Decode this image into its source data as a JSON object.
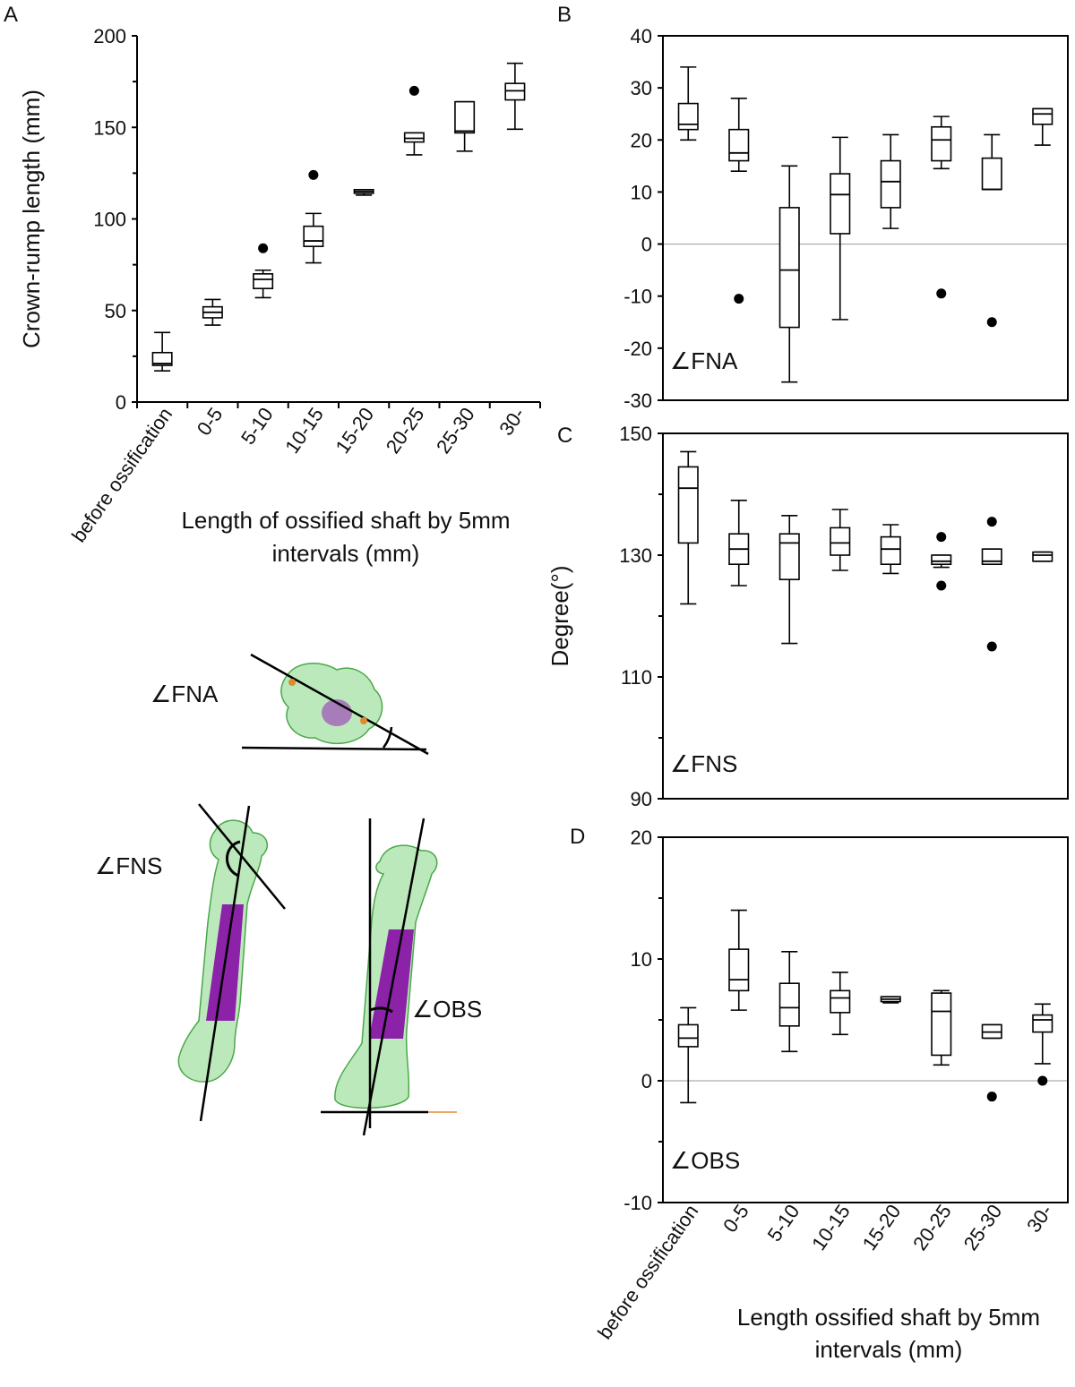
{
  "panel_letters": {
    "a": "A",
    "b": "B",
    "c": "C",
    "d": "D"
  },
  "illustration": {
    "fna_label": "∠FNA",
    "fns_label": "∠FNS",
    "obs_label": "∠OBS",
    "colors": {
      "bone": "#7fd17f",
      "ossified": "#8b22a8",
      "orange": "#e08a30",
      "line": "#000000"
    }
  },
  "chart_data": [
    {
      "panel": "A",
      "type": "box",
      "title": "",
      "xlabel": "Length of ossified shaft by 5mm intervals (mm)",
      "ylabel": "Crown-rump length (mm)",
      "ylim": [
        0,
        200
      ],
      "yticks": [
        0,
        50,
        100,
        150,
        200
      ],
      "categories": [
        "before ossification",
        "0-5",
        "5-10",
        "10-15",
        "15-20",
        "20-25",
        "25-30",
        "30-"
      ],
      "boxes": [
        {
          "min": 17,
          "q1": 20,
          "median": 21,
          "q3": 27,
          "max": 38,
          "outliers": []
        },
        {
          "min": 42,
          "q1": 46,
          "median": 49,
          "q3": 52,
          "max": 56,
          "outliers": []
        },
        {
          "min": 57,
          "q1": 62,
          "median": 67,
          "q3": 70,
          "max": 72,
          "outliers": [
            84
          ]
        },
        {
          "min": 76,
          "q1": 85,
          "median": 88,
          "q3": 96,
          "max": 103,
          "outliers": [
            124
          ]
        },
        {
          "min": 113,
          "q1": 114,
          "median": 115,
          "q3": 116,
          "max": 116,
          "outliers": []
        },
        {
          "min": 135,
          "q1": 142,
          "median": 144,
          "q3": 147,
          "max": 147,
          "outliers": [
            170
          ]
        },
        {
          "min": 137,
          "q1": 147,
          "median": 148,
          "q3": 164,
          "max": 164,
          "outliers": []
        },
        {
          "min": 149,
          "q1": 165,
          "median": 170,
          "q3": 174,
          "max": 185,
          "outliers": []
        }
      ]
    },
    {
      "panel": "B",
      "type": "box",
      "title": "",
      "label": "∠FNA",
      "ylim": [
        -30,
        40
      ],
      "yticks": [
        -30,
        -20,
        -10,
        0,
        10,
        20,
        30,
        40
      ],
      "categories": [
        "before ossification",
        "0-5",
        "5-10",
        "10-15",
        "15-20",
        "20-25",
        "25-30",
        "30-"
      ],
      "boxes": [
        {
          "min": 20,
          "q1": 22,
          "median": 23,
          "q3": 27,
          "max": 34,
          "outliers": []
        },
        {
          "min": 14,
          "q1": 16,
          "median": 17.5,
          "q3": 22,
          "max": 28,
          "outliers": [
            -10.5
          ]
        },
        {
          "min": -26.5,
          "q1": -16,
          "median": -5,
          "q3": 7,
          "max": 15,
          "outliers": []
        },
        {
          "min": -14.5,
          "q1": 2,
          "median": 9.5,
          "q3": 13.5,
          "max": 20.5,
          "outliers": []
        },
        {
          "min": 3,
          "q1": 7,
          "median": 12,
          "q3": 16,
          "max": 21,
          "outliers": []
        },
        {
          "min": 14.5,
          "q1": 16,
          "median": 20,
          "q3": 22.5,
          "max": 24.5,
          "outliers": [
            -9.5
          ]
        },
        {
          "min": 10.5,
          "q1": 10.5,
          "median": 10.5,
          "q3": 16.5,
          "max": 21,
          "outliers": [
            -15
          ]
        },
        {
          "min": 19,
          "q1": 23,
          "median": 25,
          "q3": 26,
          "max": 26,
          "outliers": []
        }
      ],
      "reference_line": 0
    },
    {
      "panel": "C",
      "type": "box",
      "title": "",
      "label": "∠FNS",
      "ylabel": "Degree(°)",
      "ylim": [
        90,
        150
      ],
      "yticks": [
        90,
        110,
        130,
        150
      ],
      "categories": [
        "before ossification",
        "0-5",
        "5-10",
        "10-15",
        "15-20",
        "20-25",
        "25-30",
        "30-"
      ],
      "boxes": [
        {
          "min": 122,
          "q1": 132,
          "median": 141,
          "q3": 144.5,
          "max": 147,
          "outliers": []
        },
        {
          "min": 125,
          "q1": 128.5,
          "median": 131,
          "q3": 133.5,
          "max": 139,
          "outliers": []
        },
        {
          "min": 115.5,
          "q1": 126,
          "median": 132,
          "q3": 133.5,
          "max": 136.5,
          "outliers": []
        },
        {
          "min": 127.5,
          "q1": 130,
          "median": 132,
          "q3": 134.5,
          "max": 137.5,
          "outliers": []
        },
        {
          "min": 127,
          "q1": 128.5,
          "median": 131,
          "q3": 133,
          "max": 135,
          "outliers": []
        },
        {
          "min": 128,
          "q1": 128.5,
          "median": 129,
          "q3": 130,
          "max": 130,
          "outliers": [
            133,
            125
          ]
        },
        {
          "min": 128.5,
          "q1": 128.5,
          "median": 129,
          "q3": 131,
          "max": 131,
          "outliers": [
            135.5,
            115
          ]
        },
        {
          "min": 129,
          "q1": 129,
          "median": 130,
          "q3": 130.5,
          "max": 130.5,
          "outliers": []
        }
      ]
    },
    {
      "panel": "D",
      "type": "box",
      "title": "",
      "label": "∠OBS",
      "xlabel": "Length ossified shaft by 5mm intervals (mm)",
      "ylim": [
        -10,
        20
      ],
      "yticks": [
        -10,
        0,
        10,
        20
      ],
      "categories": [
        "before ossification",
        "0-5",
        "5-10",
        "10-15",
        "15-20",
        "20-25",
        "25-30",
        "30-"
      ],
      "boxes": [
        {
          "min": -1.8,
          "q1": 2.8,
          "median": 3.5,
          "q3": 4.6,
          "max": 6,
          "outliers": []
        },
        {
          "min": 5.8,
          "q1": 7.4,
          "median": 8.3,
          "q3": 10.8,
          "max": 14,
          "outliers": []
        },
        {
          "min": 2.4,
          "q1": 4.5,
          "median": 6,
          "q3": 8,
          "max": 10.6,
          "outliers": []
        },
        {
          "min": 3.8,
          "q1": 5.6,
          "median": 6.8,
          "q3": 7.4,
          "max": 8.9,
          "outliers": []
        },
        {
          "min": 6.4,
          "q1": 6.5,
          "median": 6.7,
          "q3": 6.9,
          "max": 6.9,
          "outliers": []
        },
        {
          "min": 1.3,
          "q1": 2.1,
          "median": 5.7,
          "q3": 7.2,
          "max": 7.4,
          "outliers": []
        },
        {
          "min": 3.5,
          "q1": 3.5,
          "median": 4,
          "q3": 4.6,
          "max": 4.6,
          "outliers": [
            -1.3
          ]
        },
        {
          "min": 1.4,
          "q1": 4,
          "median": 5,
          "q3": 5.4,
          "max": 6.3,
          "outliers": [
            0
          ]
        }
      ],
      "reference_line": 0
    }
  ]
}
